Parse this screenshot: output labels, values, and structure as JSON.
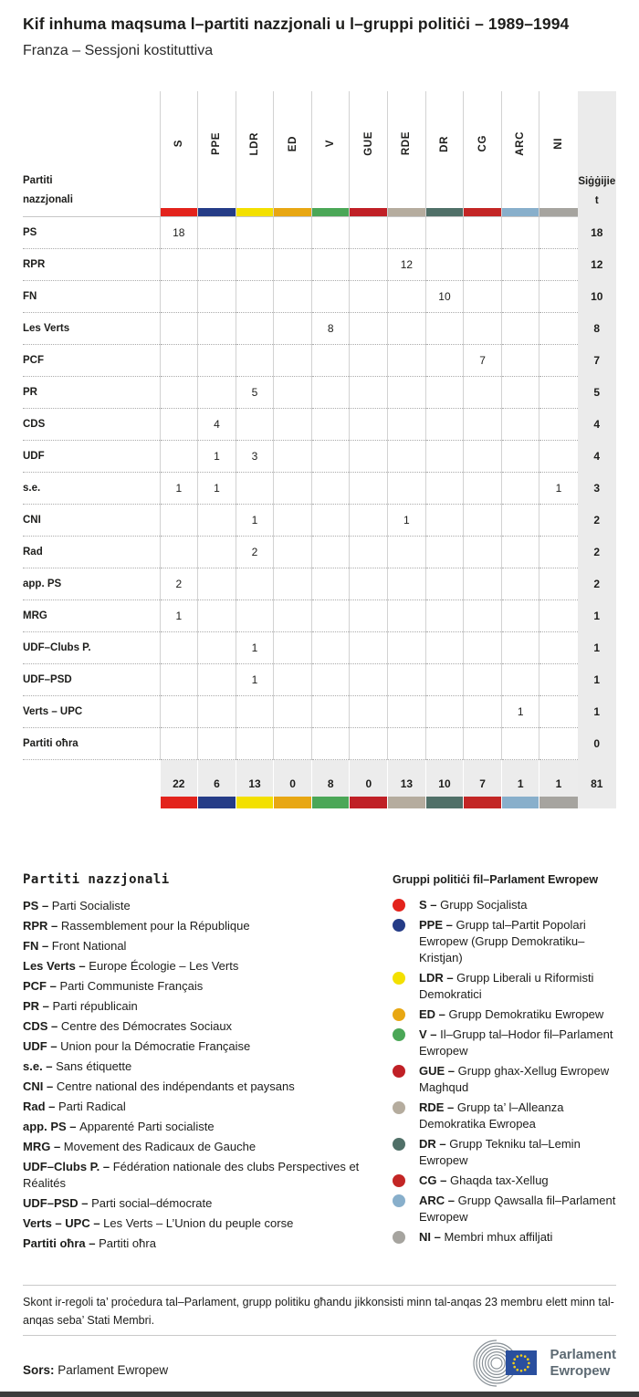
{
  "page": {
    "title": "Kif inhuma maqsuma l–partiti nazzjonali u l–gruppi politiċi – 1989–1994",
    "subtitle": "Franza – Sessjoni kostituttiva"
  },
  "table": {
    "row_header": "Partiti nazzjonali",
    "seats_header": "Siġġijiet",
    "groups": [
      {
        "code": "S",
        "color": "#e3231c"
      },
      {
        "code": "PPE",
        "color": "#253c87"
      },
      {
        "code": "LDR",
        "color": "#f3e000"
      },
      {
        "code": "ED",
        "color": "#e8a713"
      },
      {
        "code": "V",
        "color": "#4ba757"
      },
      {
        "code": "GUE",
        "color": "#c02026"
      },
      {
        "code": "RDE",
        "color": "#b5ac9e"
      },
      {
        "code": "DR",
        "color": "#507068"
      },
      {
        "code": "CG",
        "color": "#c32625"
      },
      {
        "code": "ARC",
        "color": "#88afcb"
      },
      {
        "code": "NI",
        "color": "#a6a49f"
      }
    ],
    "rows": [
      {
        "label": "PS",
        "values": [
          18,
          null,
          null,
          null,
          null,
          null,
          null,
          null,
          null,
          null,
          null
        ],
        "total": 18
      },
      {
        "label": "RPR",
        "values": [
          null,
          null,
          null,
          null,
          null,
          null,
          12,
          null,
          null,
          null,
          null
        ],
        "total": 12
      },
      {
        "label": "FN",
        "values": [
          null,
          null,
          null,
          null,
          null,
          null,
          null,
          10,
          null,
          null,
          null
        ],
        "total": 10
      },
      {
        "label": "Les Verts",
        "values": [
          null,
          null,
          null,
          null,
          8,
          null,
          null,
          null,
          null,
          null,
          null
        ],
        "total": 8
      },
      {
        "label": "PCF",
        "values": [
          null,
          null,
          null,
          null,
          null,
          null,
          null,
          null,
          7,
          null,
          null
        ],
        "total": 7
      },
      {
        "label": "PR",
        "values": [
          null,
          null,
          5,
          null,
          null,
          null,
          null,
          null,
          null,
          null,
          null
        ],
        "total": 5
      },
      {
        "label": "CDS",
        "values": [
          null,
          4,
          null,
          null,
          null,
          null,
          null,
          null,
          null,
          null,
          null
        ],
        "total": 4
      },
      {
        "label": "UDF",
        "values": [
          null,
          1,
          3,
          null,
          null,
          null,
          null,
          null,
          null,
          null,
          null
        ],
        "total": 4
      },
      {
        "label": "s.e.",
        "values": [
          1,
          1,
          null,
          null,
          null,
          null,
          null,
          null,
          null,
          null,
          1
        ],
        "total": 3
      },
      {
        "label": "CNI",
        "values": [
          null,
          null,
          1,
          null,
          null,
          null,
          1,
          null,
          null,
          null,
          null
        ],
        "total": 2
      },
      {
        "label": "Rad",
        "values": [
          null,
          null,
          2,
          null,
          null,
          null,
          null,
          null,
          null,
          null,
          null
        ],
        "total": 2
      },
      {
        "label": "app. PS",
        "values": [
          2,
          null,
          null,
          null,
          null,
          null,
          null,
          null,
          null,
          null,
          null
        ],
        "total": 2
      },
      {
        "label": "MRG",
        "values": [
          1,
          null,
          null,
          null,
          null,
          null,
          null,
          null,
          null,
          null,
          null
        ],
        "total": 1
      },
      {
        "label": "UDF–Clubs P.",
        "values": [
          null,
          null,
          1,
          null,
          null,
          null,
          null,
          null,
          null,
          null,
          null
        ],
        "total": 1
      },
      {
        "label": "UDF–PSD",
        "values": [
          null,
          null,
          1,
          null,
          null,
          null,
          null,
          null,
          null,
          null,
          null
        ],
        "total": 1
      },
      {
        "label": "Verts – UPC",
        "values": [
          null,
          null,
          null,
          null,
          null,
          null,
          null,
          null,
          null,
          1,
          null
        ],
        "total": 1
      },
      {
        "label": "Partiti oħra",
        "values": [
          null,
          null,
          null,
          null,
          null,
          null,
          null,
          null,
          null,
          null,
          null
        ],
        "total": 0
      }
    ],
    "totals": {
      "values": [
        22,
        6,
        13,
        0,
        8,
        0,
        13,
        10,
        7,
        1,
        1
      ],
      "total": 81
    }
  },
  "legend_parties": {
    "heading": "Partiti nazzjonali",
    "items": [
      {
        "abbr": "PS",
        "name": "Parti Socialiste"
      },
      {
        "abbr": "RPR",
        "name": "Rassemblement pour la République"
      },
      {
        "abbr": "FN",
        "name": "Front National"
      },
      {
        "abbr": "Les Verts",
        "name": "Europe Écologie – Les Verts"
      },
      {
        "abbr": "PCF",
        "name": "Parti Communiste Français"
      },
      {
        "abbr": "PR",
        "name": "Parti républicain"
      },
      {
        "abbr": "CDS",
        "name": "Centre des Démocrates Sociaux"
      },
      {
        "abbr": "UDF",
        "name": "Union pour la Démocratie Française"
      },
      {
        "abbr": "s.e.",
        "name": "Sans étiquette"
      },
      {
        "abbr": "CNI",
        "name": "Centre national des indépendants et paysans"
      },
      {
        "abbr": "Rad",
        "name": "Parti Radical"
      },
      {
        "abbr": "app. PS",
        "name": "Apparenté Parti socialiste"
      },
      {
        "abbr": "MRG",
        "name": "Movement des Radicaux de Gauche"
      },
      {
        "abbr": "UDF–Clubs P.",
        "name": "Fédération nationale des clubs Perspectives et Réalités"
      },
      {
        "abbr": "UDF–PSD",
        "name": "Parti social–démocrate"
      },
      {
        "abbr": "Verts – UPC",
        "name": "Les Verts – L’Union du peuple corse"
      },
      {
        "abbr": "Partiti oħra",
        "name": "Partiti oħra"
      }
    ]
  },
  "legend_groups": {
    "heading": "Gruppi politiċi fil–Parlament Ewropew",
    "items": [
      {
        "abbr": "S",
        "color": "#e3231c",
        "name": "Grupp Socjalista"
      },
      {
        "abbr": "PPE",
        "color": "#253c87",
        "name": "Grupp tal–Partit Popolari Ewropew (Grupp Demokratiku–Kristjan)"
      },
      {
        "abbr": "LDR",
        "color": "#f3e000",
        "name": "Grupp Liberali u Riformisti Demokratici"
      },
      {
        "abbr": "ED",
        "color": "#e8a713",
        "name": "Grupp Demokratiku Ewropew"
      },
      {
        "abbr": "V",
        "color": "#4ba757",
        "name": "Il–Grupp tal–Hodor fil–Parlament Ewropew"
      },
      {
        "abbr": "GUE",
        "color": "#c02026",
        "name": "Grupp ghax-Xellug Ewropew Maghqud"
      },
      {
        "abbr": "RDE",
        "color": "#b5ac9e",
        "name": "Grupp ta’ l–Alleanza Demokratika Ewropea"
      },
      {
        "abbr": "DR",
        "color": "#507068",
        "name": "Grupp Tekniku tal–Lemin Ewropew"
      },
      {
        "abbr": "CG",
        "color": "#c32625",
        "name": "Ghaqda tax-Xellug"
      },
      {
        "abbr": "ARC",
        "color": "#88afcb",
        "name": "Grupp Qawsalla fil–Parlament Ewropew"
      },
      {
        "abbr": "NI",
        "color": "#a6a49f",
        "name": "Membri mhux affiljati"
      }
    ]
  },
  "note": {
    "text": "Skont ir-regoli ta’ proċedura tal–Parlament, grupp politiku għandu jikkonsisti minn tal-anqas 23 membru elett minn tal-anqas seba’ Stati Membri."
  },
  "footer": {
    "source_label": "Sors:",
    "source_value": "Parlament Ewropew",
    "logo_line1": "Parlament",
    "logo_line2": "Ewropew"
  },
  "chart_data": {
    "type": "table",
    "title": "Kif inhuma maqsuma l–partiti nazzjonali u l–gruppi politiċi – 1989–1994",
    "subtitle": "Franza – Sessjoni kostituttiva",
    "columns": [
      "S",
      "PPE",
      "LDR",
      "ED",
      "V",
      "GUE",
      "RDE",
      "DR",
      "CG",
      "ARC",
      "NI",
      "Siġġijiet"
    ],
    "rows": [
      [
        "PS",
        18,
        null,
        null,
        null,
        null,
        null,
        null,
        null,
        null,
        null,
        null,
        18
      ],
      [
        "RPR",
        null,
        null,
        null,
        null,
        null,
        null,
        12,
        null,
        null,
        null,
        null,
        12
      ],
      [
        "FN",
        null,
        null,
        null,
        null,
        null,
        null,
        null,
        10,
        null,
        null,
        null,
        10
      ],
      [
        "Les Verts",
        null,
        null,
        null,
        null,
        8,
        null,
        null,
        null,
        null,
        null,
        null,
        8
      ],
      [
        "PCF",
        null,
        null,
        null,
        null,
        null,
        null,
        null,
        null,
        7,
        null,
        null,
        7
      ],
      [
        "PR",
        null,
        null,
        5,
        null,
        null,
        null,
        null,
        null,
        null,
        null,
        null,
        5
      ],
      [
        "CDS",
        null,
        4,
        null,
        null,
        null,
        null,
        null,
        null,
        null,
        null,
        null,
        4
      ],
      [
        "UDF",
        null,
        1,
        3,
        null,
        null,
        null,
        null,
        null,
        null,
        null,
        null,
        4
      ],
      [
        "s.e.",
        1,
        1,
        null,
        null,
        null,
        null,
        null,
        null,
        null,
        null,
        1,
        3
      ],
      [
        "CNI",
        null,
        null,
        1,
        null,
        null,
        null,
        1,
        null,
        null,
        null,
        null,
        2
      ],
      [
        "Rad",
        null,
        null,
        2,
        null,
        null,
        null,
        null,
        null,
        null,
        null,
        null,
        2
      ],
      [
        "app. PS",
        2,
        null,
        null,
        null,
        null,
        null,
        null,
        null,
        null,
        null,
        null,
        2
      ],
      [
        "MRG",
        1,
        null,
        null,
        null,
        null,
        null,
        null,
        null,
        null,
        null,
        null,
        1
      ],
      [
        "UDF–Clubs P.",
        null,
        null,
        1,
        null,
        null,
        null,
        null,
        null,
        null,
        null,
        null,
        1
      ],
      [
        "UDF–PSD",
        null,
        null,
        1,
        null,
        null,
        null,
        null,
        null,
        null,
        null,
        null,
        1
      ],
      [
        "Verts – UPC",
        null,
        null,
        null,
        null,
        null,
        null,
        null,
        null,
        null,
        1,
        null,
        1
      ],
      [
        "Partiti oħra",
        null,
        null,
        null,
        null,
        null,
        null,
        null,
        null,
        null,
        null,
        null,
        0
      ],
      [
        "Total",
        22,
        6,
        13,
        0,
        8,
        0,
        13,
        10,
        7,
        1,
        1,
        81
      ]
    ]
  }
}
